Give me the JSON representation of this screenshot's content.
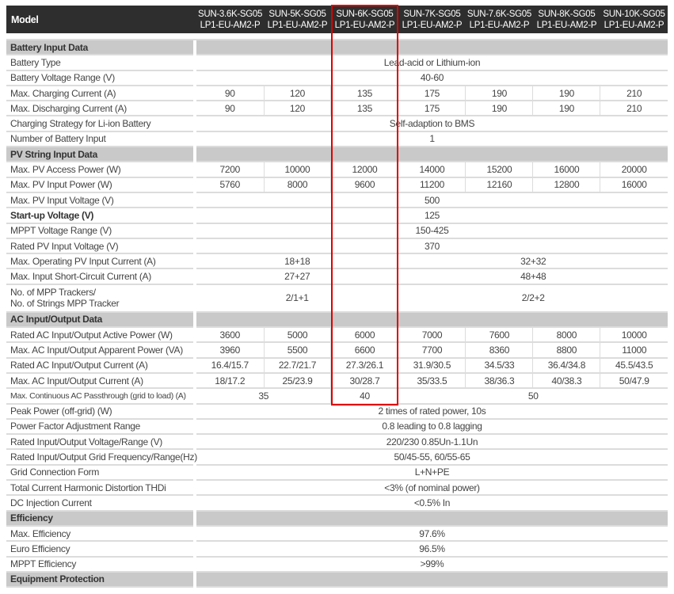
{
  "header": {
    "model_label": "Model",
    "models": [
      [
        "SUN-3.6K-SG05",
        "LP1-EU-AM2-P"
      ],
      [
        "SUN-5K-SG05",
        "LP1-EU-AM2-P"
      ],
      [
        "SUN-6K-SG05",
        "LP1-EU-AM2-P"
      ],
      [
        "SUN-7K-SG05",
        "LP1-EU-AM2-P"
      ],
      [
        "SUN-7.6K-SG05",
        "LP1-EU-AM2-P"
      ],
      [
        "SUN-8K-SG05",
        "LP1-EU-AM2-P"
      ],
      [
        "SUN-10K-SG05",
        "LP1-EU-AM2-P"
      ]
    ]
  },
  "highlight": {
    "column": "SUN-6K-SG05 LP1-EU-AM2-P",
    "color": "#e00000"
  },
  "rows": [
    {
      "section": "Battery Input Data"
    },
    {
      "label": "Battery Type",
      "cells": [
        {
          "v": "Lead-acid or Lithium-ion",
          "span": 7
        }
      ]
    },
    {
      "label": "Battery Voltage Range (V)",
      "cells": [
        {
          "v": "40-60",
          "span": 7
        }
      ]
    },
    {
      "label": "Max. Charging Current (A)",
      "cells": [
        {
          "v": "90"
        },
        {
          "v": "120"
        },
        {
          "v": "135"
        },
        {
          "v": "175"
        },
        {
          "v": "190"
        },
        {
          "v": "190"
        },
        {
          "v": "210"
        }
      ]
    },
    {
      "label": "Max. Discharging Current (A)",
      "cells": [
        {
          "v": "90"
        },
        {
          "v": "120"
        },
        {
          "v": "135"
        },
        {
          "v": "175"
        },
        {
          "v": "190"
        },
        {
          "v": "190"
        },
        {
          "v": "210"
        }
      ]
    },
    {
      "label": "Charging Strategy for Li-ion Battery",
      "cells": [
        {
          "v": "Self-adaption to BMS",
          "span": 7
        }
      ]
    },
    {
      "label": "Number of Battery Input",
      "cells": [
        {
          "v": "1",
          "span": 7
        }
      ]
    },
    {
      "section": "PV String Input Data"
    },
    {
      "label": "Max. PV Access Power (W)",
      "cells": [
        {
          "v": "7200"
        },
        {
          "v": "10000"
        },
        {
          "v": "12000"
        },
        {
          "v": "14000"
        },
        {
          "v": "15200"
        },
        {
          "v": "16000"
        },
        {
          "v": "20000"
        }
      ]
    },
    {
      "label": "Max. PV Input Power (W)",
      "cells": [
        {
          "v": "5760"
        },
        {
          "v": "8000"
        },
        {
          "v": "9600"
        },
        {
          "v": "11200"
        },
        {
          "v": "12160"
        },
        {
          "v": "12800"
        },
        {
          "v": "16000"
        }
      ]
    },
    {
      "label": "Max. PV Input Voltage (V)",
      "cells": [
        {
          "v": "500",
          "span": 7
        }
      ]
    },
    {
      "label": "Start-up Voltage (V)",
      "bold": true,
      "cells": [
        {
          "v": "125",
          "span": 7
        }
      ]
    },
    {
      "label": "MPPT  Voltage Range (V)",
      "cells": [
        {
          "v": "150-425",
          "span": 7
        }
      ]
    },
    {
      "label": "Rated PV Input Voltage (V)",
      "cells": [
        {
          "v": "370",
          "span": 7
        }
      ]
    },
    {
      "label": "Max. Operating PV Input Current (A)",
      "cells": [
        {
          "v": "18+18",
          "span": 3
        },
        {
          "v": "32+32",
          "span": 4
        }
      ]
    },
    {
      "label": "Max. Input Short-Circuit Current (A)",
      "cells": [
        {
          "v": "27+27",
          "span": 3
        },
        {
          "v": "48+48",
          "span": 4
        }
      ]
    },
    {
      "label": "No. of MPP Trackers/",
      "label2": "No. of Strings MPP Tracker",
      "tall": true,
      "cells": [
        {
          "v": "2/1+1",
          "span": 3
        },
        {
          "v": "2/2+2",
          "span": 4
        }
      ]
    },
    {
      "section": "AC Input/Output Data"
    },
    {
      "label": "Rated AC Input/Output Active Power (W)",
      "cells": [
        {
          "v": "3600"
        },
        {
          "v": "5000"
        },
        {
          "v": "6000"
        },
        {
          "v": "7000"
        },
        {
          "v": "7600"
        },
        {
          "v": "8000"
        },
        {
          "v": "10000"
        }
      ]
    },
    {
      "label": "Max. AC Input/Output Apparent Power (VA)",
      "cells": [
        {
          "v": "3960"
        },
        {
          "v": "5500"
        },
        {
          "v": "6600"
        },
        {
          "v": "7700"
        },
        {
          "v": "8360"
        },
        {
          "v": "8800"
        },
        {
          "v": "11000"
        }
      ]
    },
    {
      "label": "Rated AC Input/Output Current (A)",
      "cells": [
        {
          "v": "16.4/15.7"
        },
        {
          "v": "22.7/21.7"
        },
        {
          "v": "27.3/26.1"
        },
        {
          "v": "31.9/30.5"
        },
        {
          "v": "34.5/33"
        },
        {
          "v": "36.4/34.8"
        },
        {
          "v": "45.5/43.5"
        }
      ]
    },
    {
      "label": "Max. AC Input/Output Current (A)",
      "cells": [
        {
          "v": "18/17.2"
        },
        {
          "v": "25/23.9"
        },
        {
          "v": "30/28.7"
        },
        {
          "v": "35/33.5"
        },
        {
          "v": "38/36.3"
        },
        {
          "v": "40/38.3"
        },
        {
          "v": "50/47.9"
        }
      ]
    },
    {
      "label": "Max. Continuous AC Passthrough (grid to load) (A)",
      "small": true,
      "cells": [
        {
          "v": "35",
          "span": 2
        },
        {
          "v": "40"
        },
        {
          "v": "50",
          "span": 4
        }
      ]
    },
    {
      "label": "Peak Power (off-grid) (W)",
      "cells": [
        {
          "v": "2 times of rated power, 10s",
          "span": 7
        }
      ]
    },
    {
      "label": "Power Factor Adjustment Range",
      "cells": [
        {
          "v": "0.8 leading to 0.8 lagging",
          "span": 7
        }
      ]
    },
    {
      "label": "Rated Input/Output Voltage/Range (V)",
      "cells": [
        {
          "v": "220/230  0.85Un-1.1Un",
          "span": 7
        }
      ]
    },
    {
      "label": "Rated Input/Output Grid Frequency/Range(Hz)",
      "cells": [
        {
          "v": "50/45-55, 60/55-65",
          "span": 7
        }
      ]
    },
    {
      "label": "Grid Connection Form",
      "cells": [
        {
          "v": "L+N+PE",
          "span": 7
        }
      ]
    },
    {
      "label": "Total Current Harmonic Distortion THDi",
      "cells": [
        {
          "v": "<3% (of nominal power)",
          "span": 7
        }
      ]
    },
    {
      "label": "DC Injection Current",
      "cells": [
        {
          "v": "<0.5% In",
          "span": 7
        }
      ]
    },
    {
      "section": "Efficiency"
    },
    {
      "label": "Max. Efficiency",
      "cells": [
        {
          "v": "97.6%",
          "span": 7
        }
      ]
    },
    {
      "label": "Euro Efficiency",
      "cells": [
        {
          "v": "96.5%",
          "span": 7
        }
      ]
    },
    {
      "label": "MPPT Efficiency",
      "cells": [
        {
          "v": ">99%",
          "span": 7
        }
      ]
    },
    {
      "section": "Equipment Protection"
    }
  ]
}
